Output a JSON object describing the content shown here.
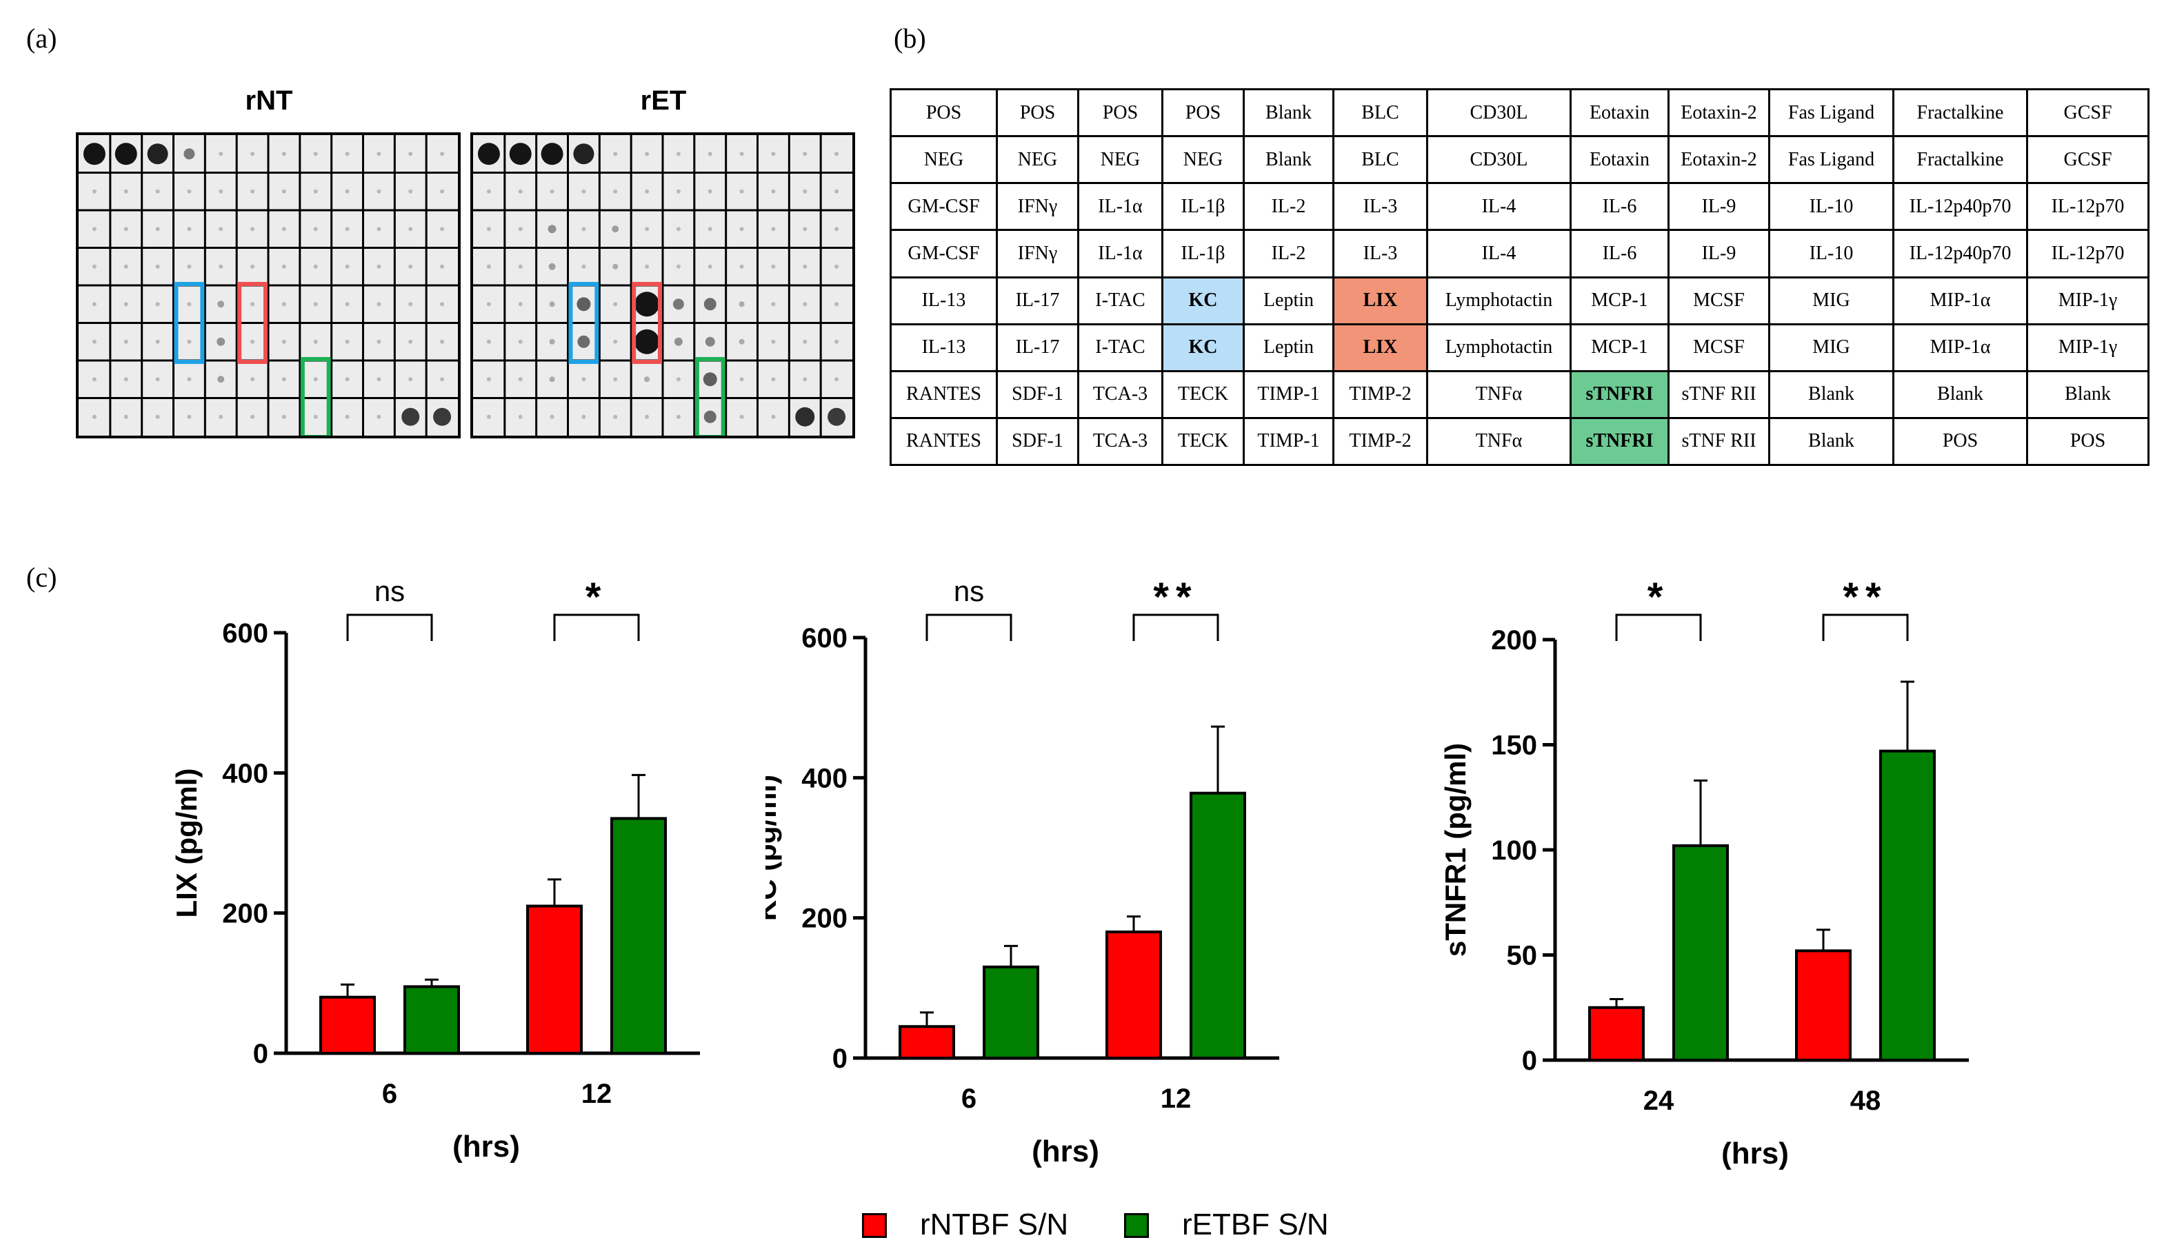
{
  "panels": {
    "a": "(a)",
    "b": "(b)",
    "c": "(c)"
  },
  "blots": [
    {
      "title": "rNT"
    },
    {
      "title": "rET"
    }
  ],
  "colors": {
    "red": "#ff0000",
    "green": "#007f00",
    "blue_box": "#1fa3e6",
    "red_box": "#f05050",
    "green_box": "#1db054"
  },
  "table": {
    "rows": [
      [
        "POS",
        "POS",
        "POS",
        "POS",
        "Blank",
        "BLC",
        "CD30L",
        "Eotaxin",
        "Eotaxin-2",
        "Fas Ligand",
        "Fractalkine",
        "GCSF"
      ],
      [
        "NEG",
        "NEG",
        "NEG",
        "NEG",
        "Blank",
        "BLC",
        "CD30L",
        "Eotaxin",
        "Eotaxin-2",
        "Fas Ligand",
        "Fractalkine",
        "GCSF"
      ],
      [
        "GM-CSF",
        "IFNγ",
        "IL-1α",
        "IL-1β",
        "IL-2",
        "IL-3",
        "IL-4",
        "IL-6",
        "IL-9",
        "IL-10",
        "IL-12p40p70",
        "IL-12p70"
      ],
      [
        "GM-CSF",
        "IFNγ",
        "IL-1α",
        "IL-1β",
        "IL-2",
        "IL-3",
        "IL-4",
        "IL-6",
        "IL-9",
        "IL-10",
        "IL-12p40p70",
        "IL-12p70"
      ],
      [
        "IL-13",
        "IL-17",
        "I-TAC",
        "KC",
        "Leptin",
        "LIX",
        "Lymphotactin",
        "MCP-1",
        "MCSF",
        "MIG",
        "MIP-1α",
        "MIP-1γ"
      ],
      [
        "IL-13",
        "IL-17",
        "I-TAC",
        "KC",
        "Leptin",
        "LIX",
        "Lymphotactin",
        "MCP-1",
        "MCSF",
        "MIG",
        "MIP-1α",
        "MIP-1γ"
      ],
      [
        "RANTES",
        "SDF-1",
        "TCA-3",
        "TECK",
        "TIMP-1",
        "TIMP-2",
        "TNFα",
        "sTNFRI",
        "sTNF RII",
        "Blank",
        "Blank",
        "Blank"
      ],
      [
        "RANTES",
        "SDF-1",
        "TCA-3",
        "TECK",
        "TIMP-1",
        "TIMP-2",
        "TNFα",
        "sTNFRI",
        "sTNF RII",
        "Blank",
        "POS",
        "POS"
      ]
    ],
    "highlights": {
      "KC": "blue",
      "LIX": "red",
      "sTNFRI": "green"
    }
  },
  "chart_data": [
    {
      "type": "bar",
      "categories": [
        "6",
        "12"
      ],
      "series": [
        {
          "name": "rNTBF S/N",
          "values": [
            80,
            210
          ],
          "errors": [
            18,
            38
          ]
        },
        {
          "name": "rETBF S/N",
          "values": [
            95,
            335
          ],
          "errors": [
            10,
            62
          ]
        }
      ],
      "significance": [
        "ns",
        "*"
      ],
      "ylabel": "LIX (pg/ml)",
      "xlabel": "(hrs)",
      "ylim": [
        0,
        600
      ],
      "yticks": [
        "0",
        "200",
        "400",
        "600"
      ]
    },
    {
      "type": "bar",
      "categories": [
        "6",
        "12"
      ],
      "series": [
        {
          "name": "rNTBF S/N",
          "values": [
            45,
            180
          ],
          "errors": [
            20,
            22
          ]
        },
        {
          "name": "rETBF S/N",
          "values": [
            130,
            378
          ],
          "errors": [
            30,
            95
          ]
        }
      ],
      "significance": [
        "ns",
        "**"
      ],
      "ylabel": "KC (pg/ml)",
      "xlabel": "(hrs)",
      "ylim": [
        0,
        600
      ],
      "yticks": [
        "0",
        "200",
        "400",
        "600"
      ]
    },
    {
      "type": "bar",
      "categories": [
        "24",
        "48"
      ],
      "series": [
        {
          "name": "rNTBF S/N",
          "values": [
            25,
            52
          ],
          "errors": [
            4,
            10
          ]
        },
        {
          "name": "rETBF S/N",
          "values": [
            102,
            147
          ],
          "errors": [
            31,
            33
          ]
        }
      ],
      "significance": [
        "*",
        "**"
      ],
      "ylabel": "sTNFR1 (pg/ml)",
      "xlabel": "(hrs)",
      "ylim": [
        0,
        200
      ],
      "yticks": [
        "0",
        "50",
        "100",
        "150",
        "200"
      ]
    }
  ],
  "legend": [
    {
      "label": "rNTBF S/N",
      "color": "#ff0000"
    },
    {
      "label": "rETBF S/N",
      "color": "#007f00"
    }
  ]
}
